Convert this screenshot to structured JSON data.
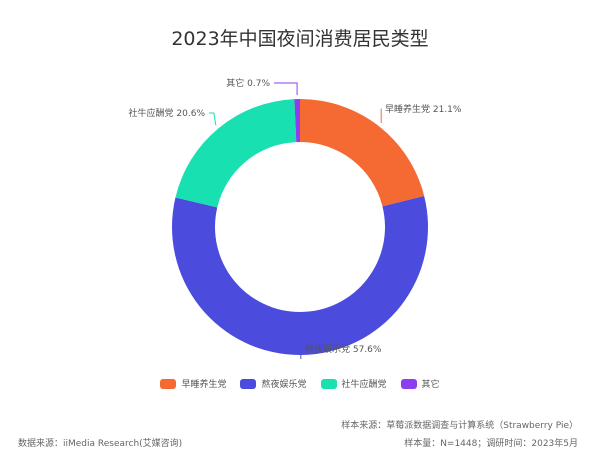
{
  "chart_data": {
    "type": "pie",
    "title": "2023年中国夜间消费居民类型",
    "categories": [
      "早睡养生党",
      "熬夜娱乐党",
      "社牛应酬党",
      "其它"
    ],
    "values": [
      21.1,
      57.6,
      20.6,
      0.7
    ],
    "labels": [
      "早睡养生党 21.1%",
      "熬夜娱乐党 57.6%",
      "社牛应酬党 20.6%",
      "其它 0.7%"
    ],
    "colors": [
      "#f46a32",
      "#4b4bde",
      "#19e0b0",
      "#8c3ef0"
    ],
    "legend_position": "bottom"
  },
  "footer": {
    "sample_source": "样本来源：草莓派数据调查与计算系统（Strawberry Pie）",
    "data_source": "数据来源：iiMedia Research(艾媒咨询)",
    "sample_info": "样本量：N=1448；调研时间：2023年5月"
  }
}
